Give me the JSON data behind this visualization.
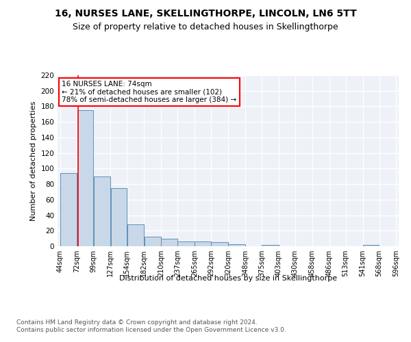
{
  "title": "16, NURSES LANE, SKELLINGTHORPE, LINCOLN, LN6 5TT",
  "subtitle": "Size of property relative to detached houses in Skellingthorpe",
  "xlabel": "Distribution of detached houses by size in Skellingthorpe",
  "ylabel": "Number of detached properties",
  "bar_color": "#c8d8e8",
  "bar_edge_color": "#6090b8",
  "background_color": "#eef2f8",
  "grid_color": "#ffffff",
  "red_line_x": 74,
  "annotation_text": "16 NURSES LANE: 74sqm\n← 21% of detached houses are smaller (102)\n78% of semi-detached houses are larger (384) →",
  "footer_text": "Contains HM Land Registry data © Crown copyright and database right 2024.\nContains public sector information licensed under the Open Government Licence v3.0.",
  "bins": [
    44,
    72,
    99,
    127,
    154,
    182,
    210,
    237,
    265,
    292,
    320,
    348,
    375,
    403,
    430,
    458,
    486,
    513,
    541,
    568,
    596
  ],
  "bin_labels": [
    "44sqm",
    "72sqm",
    "99sqm",
    "127sqm",
    "154sqm",
    "182sqm",
    "210sqm",
    "237sqm",
    "265sqm",
    "292sqm",
    "320sqm",
    "348sqm",
    "375sqm",
    "403sqm",
    "430sqm",
    "458sqm",
    "486sqm",
    "513sqm",
    "541sqm",
    "568sqm",
    "596sqm"
  ],
  "counts": [
    94,
    175,
    90,
    75,
    28,
    12,
    10,
    6,
    6,
    5,
    3,
    0,
    2,
    0,
    0,
    0,
    0,
    0,
    2,
    0,
    0
  ],
  "ylim": [
    0,
    220
  ],
  "yticks": [
    0,
    20,
    40,
    60,
    80,
    100,
    120,
    140,
    160,
    180,
    200,
    220
  ],
  "title_fontsize": 10,
  "subtitle_fontsize": 9,
  "ylabel_fontsize": 8,
  "xlabel_fontsize": 8,
  "tick_fontsize": 7,
  "footer_fontsize": 6.5,
  "ann_fontsize": 7.5
}
